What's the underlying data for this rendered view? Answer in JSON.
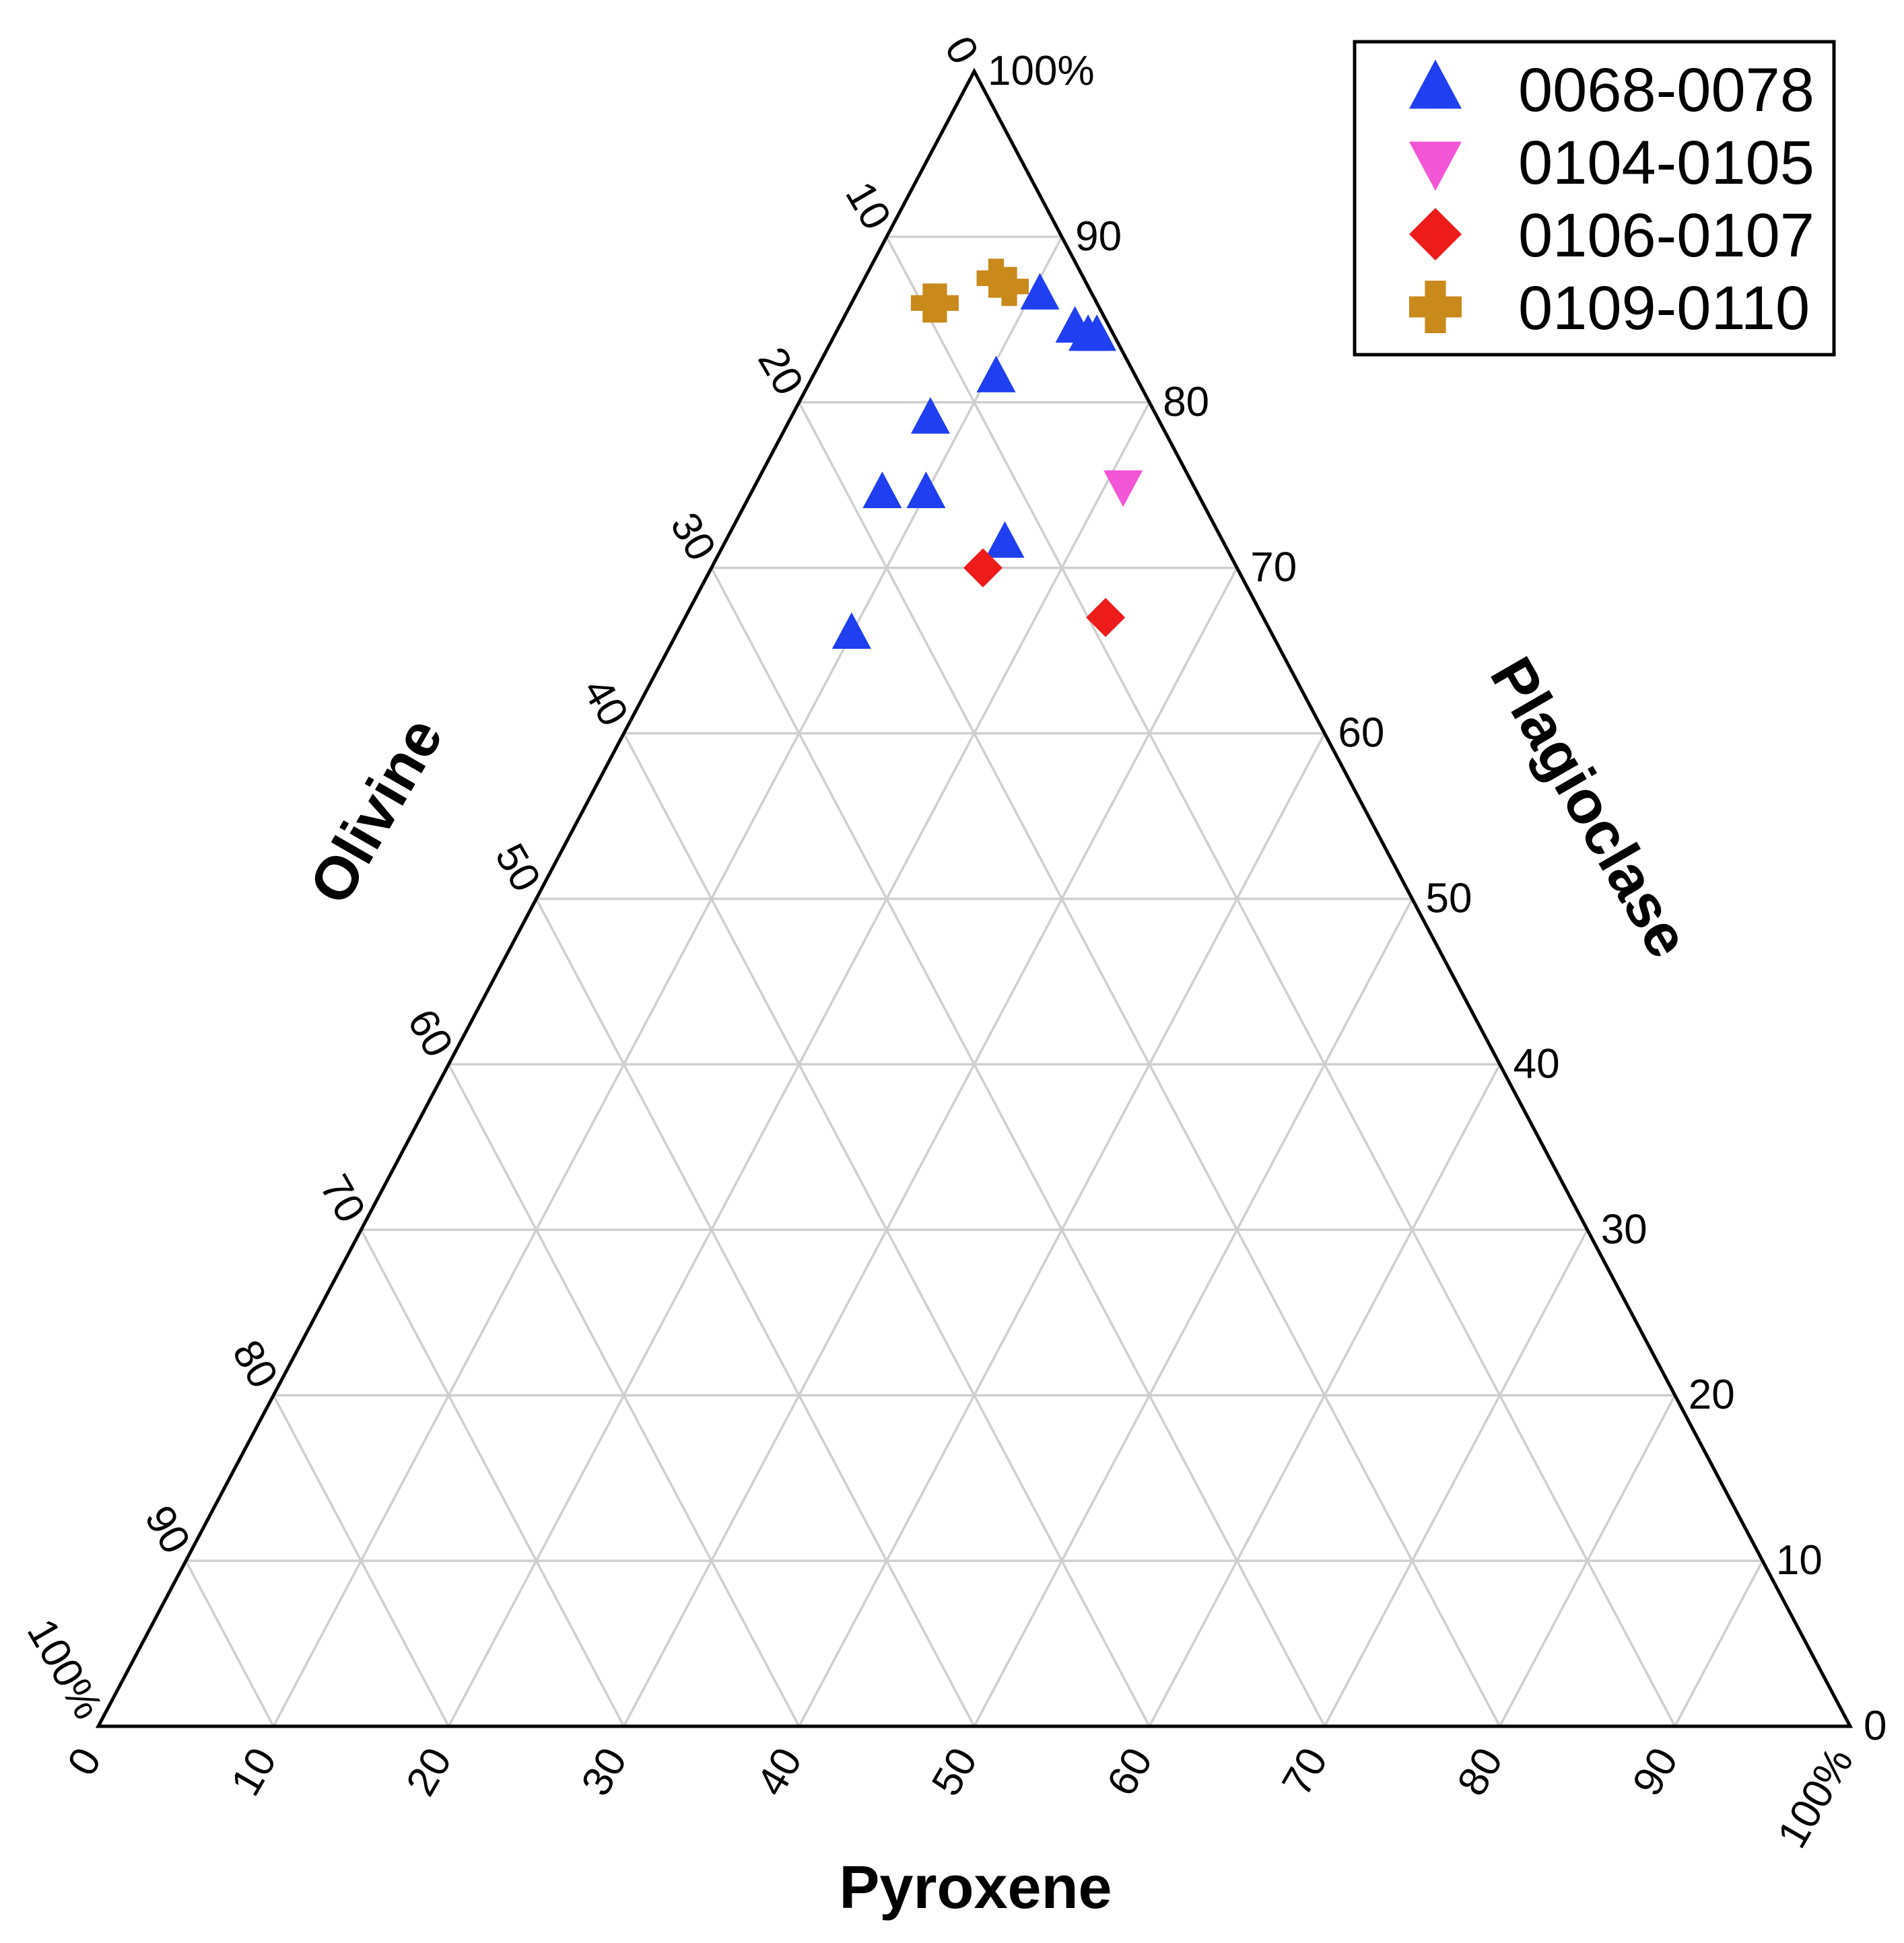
{
  "chart_data": {
    "type": "scatter",
    "subtype": "ternary",
    "axes": {
      "olivine": {
        "label": "Olivine",
        "ticks": [
          "0",
          "10",
          "20",
          "30",
          "40",
          "50",
          "60",
          "70",
          "80",
          "90",
          "100%"
        ]
      },
      "pyroxene": {
        "label": "Pyroxene",
        "ticks": [
          "0",
          "10",
          "20",
          "30",
          "40",
          "50",
          "60",
          "70",
          "80",
          "90",
          "100%"
        ]
      },
      "plagioclase": {
        "label": "Plagioclase",
        "ticks": [
          "0",
          "10",
          "20",
          "30",
          "40",
          "50",
          "60",
          "70",
          "80",
          "90",
          "100%"
        ]
      }
    },
    "grid": true,
    "legend_position": "top-right",
    "series": [
      {
        "name": "0068-0078",
        "marker": "triangle-up",
        "color": "#1f3ff0",
        "points": [
          {
            "plagioclase": 86.5,
            "pyroxene": 10.5,
            "olivine": 3.0
          },
          {
            "plagioclase": 84.5,
            "pyroxene": 13.5,
            "olivine": 2.0
          },
          {
            "plagioclase": 84.0,
            "pyroxene": 14.5,
            "olivine": 1.5
          },
          {
            "plagioclase": 84.0,
            "pyroxene": 15.0,
            "olivine": 1.0
          },
          {
            "plagioclase": 81.5,
            "pyroxene": 10.5,
            "olivine": 8.0
          },
          {
            "plagioclase": 79.0,
            "pyroxene": 8.0,
            "olivine": 13.0
          },
          {
            "plagioclase": 74.5,
            "pyroxene": 10.0,
            "olivine": 15.5
          },
          {
            "plagioclase": 74.5,
            "pyroxene": 7.5,
            "olivine": 18.0
          },
          {
            "plagioclase": 71.5,
            "pyroxene": 16.0,
            "olivine": 12.5
          },
          {
            "plagioclase": 66.0,
            "pyroxene": 10.0,
            "olivine": 24.0
          }
        ]
      },
      {
        "name": "0104-0105",
        "marker": "triangle-down",
        "color": "#f255d6",
        "points": [
          {
            "plagioclase": 75.0,
            "pyroxene": 21.0,
            "olivine": 4.0
          }
        ]
      },
      {
        "name": "0106-0107",
        "marker": "diamond",
        "color": "#ee1b1b",
        "points": [
          {
            "plagioclase": 70.0,
            "pyroxene": 15.5,
            "olivine": 14.5
          },
          {
            "plagioclase": 67.0,
            "pyroxene": 24.0,
            "olivine": 9.0
          }
        ]
      },
      {
        "name": "0109-0110",
        "marker": "plus",
        "color": "#c98a1b",
        "points": [
          {
            "plagioclase": 86.0,
            "pyroxene": 4.5,
            "olivine": 9.5
          },
          {
            "plagioclase": 86.0,
            "pyroxene": 5.0,
            "olivine": 9.0
          },
          {
            "plagioclase": 87.5,
            "pyroxene": 7.5,
            "olivine": 5.0
          },
          {
            "plagioclase": 87.0,
            "pyroxene": 8.5,
            "olivine": 4.5
          }
        ]
      }
    ]
  }
}
